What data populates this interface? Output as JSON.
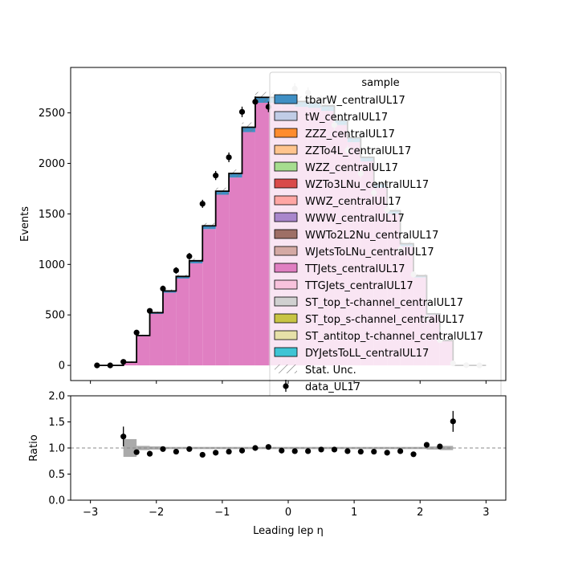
{
  "chart_data": [
    {
      "type": "bar",
      "stacked_step_histogram": true,
      "xlabel": "Leading lep η",
      "ylabel": "Events",
      "xlim": [
        -3.3,
        3.3
      ],
      "ylim": [
        -150,
        2950
      ],
      "yticks": [
        0,
        500,
        1000,
        1500,
        2000,
        2500
      ],
      "bin_edges": [
        -2.5,
        -2.3,
        -2.1,
        -1.9,
        -1.7,
        -1.5,
        -1.3,
        -1.1,
        -0.9,
        -0.7,
        -0.5,
        -0.3,
        -0.1,
        0.1,
        0.3,
        0.5,
        0.7,
        0.9,
        1.1,
        1.3,
        1.5,
        1.7,
        1.9,
        2.1,
        2.3,
        2.5
      ],
      "legend": {
        "title": "sample",
        "placement": "top-right",
        "entries": [
          {
            "name": "tbarW_centralUL17",
            "color": "#3f8fc4",
            "kind": "patch"
          },
          {
            "name": "tW_centralUL17",
            "color": "#c0cce6",
            "kind": "patch"
          },
          {
            "name": "ZZZ_centralUL17",
            "color": "#ff8c2e",
            "kind": "patch"
          },
          {
            "name": "ZZTo4L_centralUL17",
            "color": "#ffc48e",
            "kind": "patch"
          },
          {
            "name": "WZZ_centralUL17",
            "color": "#a6dd8f",
            "kind": "patch"
          },
          {
            "name": "WZTo3LNu_centralUL17",
            "color": "#d94a4a",
            "kind": "patch"
          },
          {
            "name": "WWZ_centralUL17",
            "color": "#ffa6a4",
            "kind": "patch"
          },
          {
            "name": "WWW_centralUL17",
            "color": "#a987cc",
            "kind": "patch"
          },
          {
            "name": "WWTo2L2Nu_centralUL17",
            "color": "#9e6f66",
            "kind": "patch"
          },
          {
            "name": "WJetsToLNu_centralUL17",
            "color": "#d4a9a4",
            "kind": "patch"
          },
          {
            "name": "TTJets_centralUL17",
            "color": "#e07fc2",
            "kind": "patch"
          },
          {
            "name": "TTGJets_centralUL17",
            "color": "#f8c2dc",
            "kind": "patch"
          },
          {
            "name": "ST_top_t-channel_centralUL17",
            "color": "#d0d0d0",
            "kind": "patch"
          },
          {
            "name": "ST_top_s-channel_centralUL17",
            "color": "#c8c444",
            "kind": "patch"
          },
          {
            "name": "ST_antitop_t-channel_centralUL17",
            "color": "#e6e0a8",
            "kind": "patch"
          },
          {
            "name": "DYJetsToLL_centralUL17",
            "color": "#3fc4d4",
            "kind": "patch"
          },
          {
            "name": "Stat. Unc.",
            "color": "#888888",
            "kind": "hatch"
          },
          {
            "name": "data_UL17",
            "color": "#000000",
            "kind": "errorbar"
          }
        ]
      },
      "series": [
        {
          "name": "TTJets_centralUL17",
          "color": "#e07fc2",
          "values": [
            30,
            290,
            510,
            720,
            860,
            1010,
            1350,
            1690,
            1860,
            2310,
            2600,
            2600,
            2580,
            2560,
            2550,
            2520,
            2380,
            2210,
            2020,
            1760,
            1500,
            1180,
            870,
            500,
            240
          ]
        },
        {
          "name": "tbarW_centralUL17",
          "color": "#3f8fc4",
          "values": [
            2,
            5,
            10,
            15,
            18,
            22,
            28,
            30,
            35,
            42,
            48,
            48,
            48,
            47,
            46,
            45,
            42,
            40,
            36,
            32,
            27,
            22,
            16,
            10,
            5
          ]
        },
        {
          "name": "DYJetsToLL_centralUL17",
          "color": "#3fc4d4",
          "values": [
            0,
            1,
            2,
            2,
            3,
            4,
            4,
            5,
            6,
            6,
            6,
            6,
            6,
            6,
            6,
            6,
            6,
            5,
            5,
            5,
            4,
            3,
            2,
            1,
            1
          ]
        }
      ],
      "stat_unc_total": [
        32,
        296,
        522,
        737,
        881,
        1036,
        1382,
        1725,
        1901,
        2358,
        2654,
        2654,
        2634,
        2613,
        2602,
        2571,
        2428,
        2255,
        2061,
        1797,
        1531,
        1205,
        888,
        511,
        246
      ],
      "data": {
        "name": "data_UL17",
        "x": [
          -2.9,
          -2.7,
          -2.5,
          -2.3,
          -2.1,
          -1.9,
          -1.7,
          -1.5,
          -1.3,
          -1.1,
          -0.9,
          -0.7,
          -0.5,
          -0.3,
          -0.1,
          0.1,
          0.3,
          0.5,
          0.7,
          0.9,
          1.1,
          1.3,
          1.5,
          1.7,
          1.9,
          2.1,
          2.3,
          2.5,
          2.7,
          2.9
        ],
        "y": [
          0,
          0,
          35,
          325,
          540,
          760,
          940,
          1080,
          1600,
          1880,
          2060,
          2510,
          2610,
          2560,
          2470,
          2740,
          2700,
          2620,
          2380,
          2130,
          1900,
          1710,
          1540,
          1150,
          900,
          470,
          250,
          20,
          2,
          0
        ],
        "yerr": [
          2,
          2,
          10,
          20,
          25,
          30,
          32,
          34,
          40,
          45,
          48,
          52,
          53,
          52,
          51,
          55,
          54,
          53,
          50,
          48,
          45,
          42,
          40,
          35,
          30,
          22,
          16,
          6,
          2,
          2
        ],
        "above_legend_color": "#c8c8c8"
      }
    },
    {
      "type": "scatter",
      "panel": "ratio",
      "xlabel": "Leading lep η",
      "ylabel": "Ratio",
      "xlim": [
        -3.3,
        3.3
      ],
      "ylim": [
        0,
        2
      ],
      "yticks": [
        0.0,
        0.5,
        1.0,
        1.5,
        2.0
      ],
      "xticks": [
        -3,
        -2,
        -1,
        0,
        1,
        2,
        3
      ],
      "reference_line": 1.0,
      "x": [
        -2.5,
        -2.3,
        -2.1,
        -1.9,
        -1.7,
        -1.5,
        -1.3,
        -1.1,
        -0.9,
        -0.7,
        -0.5,
        -0.3,
        -0.1,
        0.1,
        0.3,
        0.5,
        0.7,
        0.9,
        1.1,
        1.3,
        1.5,
        1.7,
        1.9,
        2.1,
        2.3,
        2.5
      ],
      "y": [
        1.22,
        0.92,
        0.89,
        0.98,
        0.93,
        0.98,
        0.87,
        0.91,
        0.93,
        0.95,
        1.0,
        1.02,
        0.95,
        0.94,
        0.94,
        0.97,
        0.97,
        0.94,
        0.93,
        0.93,
        0.91,
        0.94,
        0.88,
        1.06,
        1.03,
        1.51
      ],
      "yerr": [
        0.19,
        0.05,
        0.04,
        0.03,
        0.03,
        0.03,
        0.03,
        0.02,
        0.02,
        0.02,
        0.02,
        0.02,
        0.02,
        0.02,
        0.02,
        0.02,
        0.02,
        0.02,
        0.02,
        0.02,
        0.02,
        0.03,
        0.03,
        0.04,
        0.05,
        0.2
      ],
      "unc_band_halfwidth": [
        0.17,
        0.04,
        0.03,
        0.02,
        0.02,
        0.02,
        0.02,
        0.02,
        0.02,
        0.02,
        0.02,
        0.02,
        0.02,
        0.02,
        0.02,
        0.02,
        0.02,
        0.02,
        0.02,
        0.02,
        0.02,
        0.02,
        0.02,
        0.03,
        0.04
      ]
    }
  ]
}
